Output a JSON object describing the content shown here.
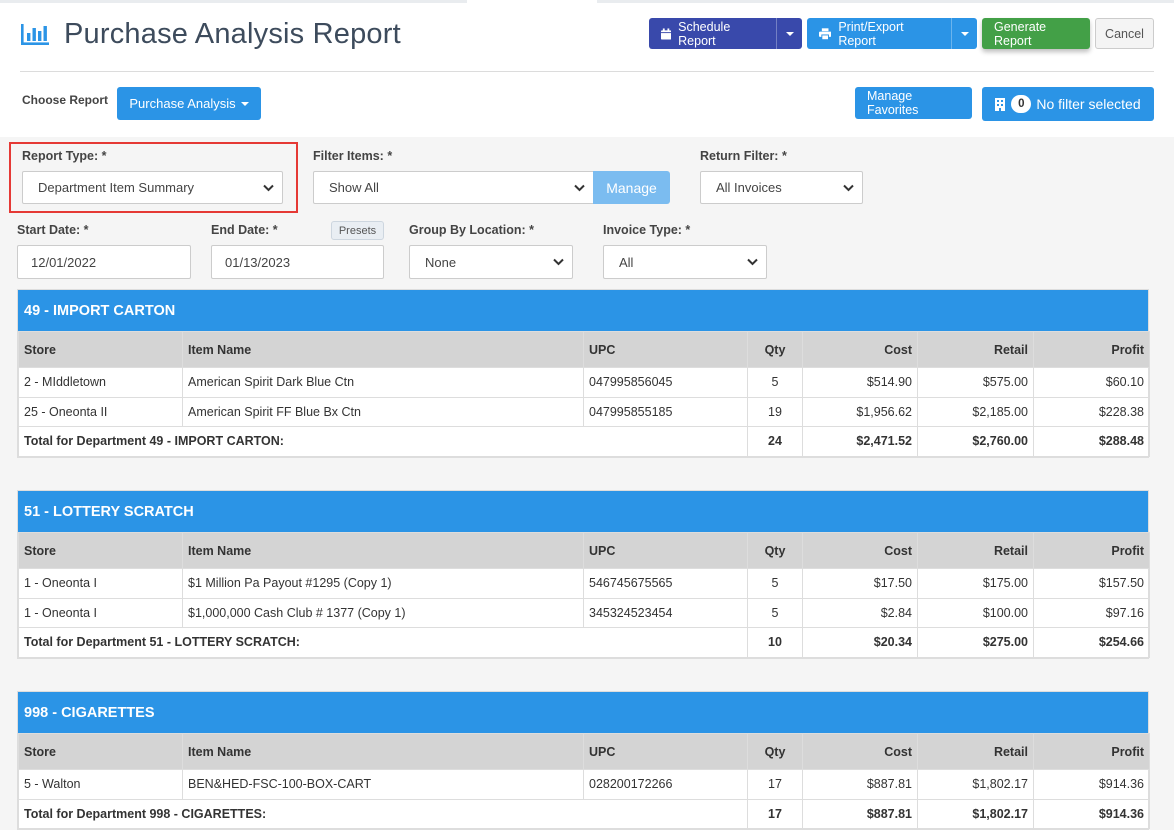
{
  "page": {
    "title": "Purchase Analysis Report"
  },
  "toolbar": {
    "schedule_label": "Schedule Report",
    "print_label": "Print/Export Report",
    "generate_label": "Generate Report",
    "cancel_label": "Cancel"
  },
  "choose": {
    "label": "Choose Report",
    "selected": "Purchase Analysis",
    "manage_favorites": "Manage Favorites",
    "filter_count": "0",
    "filter_text": "No filter selected"
  },
  "filters": {
    "report_type_label": "Report Type: *",
    "report_type_value": "Department Item Summary",
    "filter_items_label": "Filter Items: *",
    "filter_items_value": "Show All",
    "manage_label": "Manage",
    "return_filter_label": "Return Filter: *",
    "return_filter_value": "All Invoices",
    "start_date_label": "Start Date: *",
    "start_date_value": "12/01/2022",
    "end_date_label": "End Date: *",
    "end_date_value": "01/13/2023",
    "presets_label": "Presets",
    "group_by_label": "Group By Location: *",
    "group_by_value": "None",
    "invoice_type_label": "Invoice Type: *",
    "invoice_type_value": "All"
  },
  "table_headers": {
    "store": "Store",
    "item_name": "Item Name",
    "upc": "UPC",
    "qty": "Qty",
    "cost": "Cost",
    "retail": "Retail",
    "profit": "Profit"
  },
  "departments": [
    {
      "title": "49 - IMPORT CARTON",
      "rows": [
        {
          "store": "2 - MIddletown",
          "item": "American Spirit Dark Blue Ctn",
          "upc": "047995856045",
          "qty": "5",
          "cost": "$514.90",
          "retail": "$575.00",
          "profit": "$60.10"
        },
        {
          "store": "25 - Oneonta II",
          "item": "American Spirit FF Blue Bx Ctn",
          "upc": "047995855185",
          "qty": "19",
          "cost": "$1,956.62",
          "retail": "$2,185.00",
          "profit": "$228.38"
        }
      ],
      "total": {
        "label": "Total for Department 49 - IMPORT CARTON:",
        "qty": "24",
        "cost": "$2,471.52",
        "retail": "$2,760.00",
        "profit": "$288.48"
      }
    },
    {
      "title": "51 - LOTTERY SCRATCH",
      "rows": [
        {
          "store": "1 - Oneonta I",
          "item": "$1 Million Pa Payout #1295 (Copy 1)",
          "upc": "546745675565",
          "qty": "5",
          "cost": "$17.50",
          "retail": "$175.00",
          "profit": "$157.50"
        },
        {
          "store": "1 - Oneonta I",
          "item": "$1,000,000 Cash Club # 1377 (Copy 1)",
          "upc": "345324523454",
          "qty": "5",
          "cost": "$2.84",
          "retail": "$100.00",
          "profit": "$97.16"
        }
      ],
      "total": {
        "label": "Total for Department 51 - LOTTERY SCRATCH:",
        "qty": "10",
        "cost": "$20.34",
        "retail": "$275.00",
        "profit": "$254.66"
      }
    },
    {
      "title": "998 - CIGARETTES",
      "rows": [
        {
          "store": "5 - Walton",
          "item": "BEN&HED-FSC-100-BOX-CART",
          "upc": "028200172266",
          "qty": "17",
          "cost": "$887.81",
          "retail": "$1,802.17",
          "profit": "$914.36"
        }
      ],
      "total": {
        "label": "Total for Department 998 - CIGARETTES:",
        "qty": "17",
        "cost": "$887.81",
        "retail": "$1,802.17",
        "profit": "$914.36"
      }
    }
  ]
}
